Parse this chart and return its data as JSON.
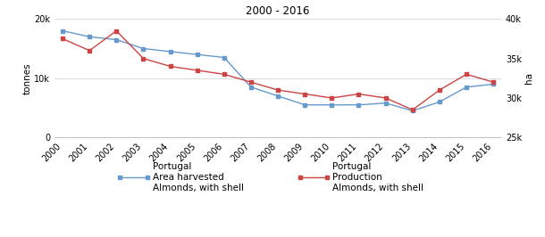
{
  "years": [
    2000,
    2001,
    2002,
    2003,
    2004,
    2005,
    2006,
    2007,
    2008,
    2009,
    2010,
    2011,
    2012,
    2013,
    2014,
    2015,
    2016
  ],
  "area_ha": [
    18000,
    17000,
    16500,
    15000,
    14500,
    14000,
    13500,
    8500,
    7000,
    5500,
    5500,
    5500,
    5800,
    4500,
    6000,
    8500,
    9000
  ],
  "production_tonnes": [
    37500,
    36000,
    38500,
    35000,
    34000,
    33500,
    33000,
    32000,
    31000,
    30500,
    30000,
    30500,
    30000,
    28500,
    31000,
    33000,
    32000
  ],
  "title": "2000 - 2016",
  "left_ylabel": "tonnes",
  "right_ylabel": "ha",
  "left_ylim": [
    0,
    20000
  ],
  "right_ylim": [
    25000,
    40000
  ],
  "left_yticks": [
    0,
    10000,
    20000
  ],
  "left_yticklabels": [
    "0",
    "10k",
    "20k"
  ],
  "right_yticks": [
    25000,
    30000,
    35000,
    40000
  ],
  "right_yticklabels": [
    "25k",
    "30k",
    "35k",
    "40k"
  ],
  "area_color": "#6699CC",
  "prod_color": "#CC4444",
  "legend_area": [
    "Portugal\nArea harvested\nAlmonds, with shell"
  ],
  "legend_prod": [
    "Portugal\nProduction\nAlmonds, with shell"
  ],
  "marker": "s",
  "markersize": 3.5,
  "linewidth": 1.0,
  "grid_color": "#cccccc",
  "tick_fontsize": 7,
  "label_fontsize": 7.5,
  "title_fontsize": 8.5
}
